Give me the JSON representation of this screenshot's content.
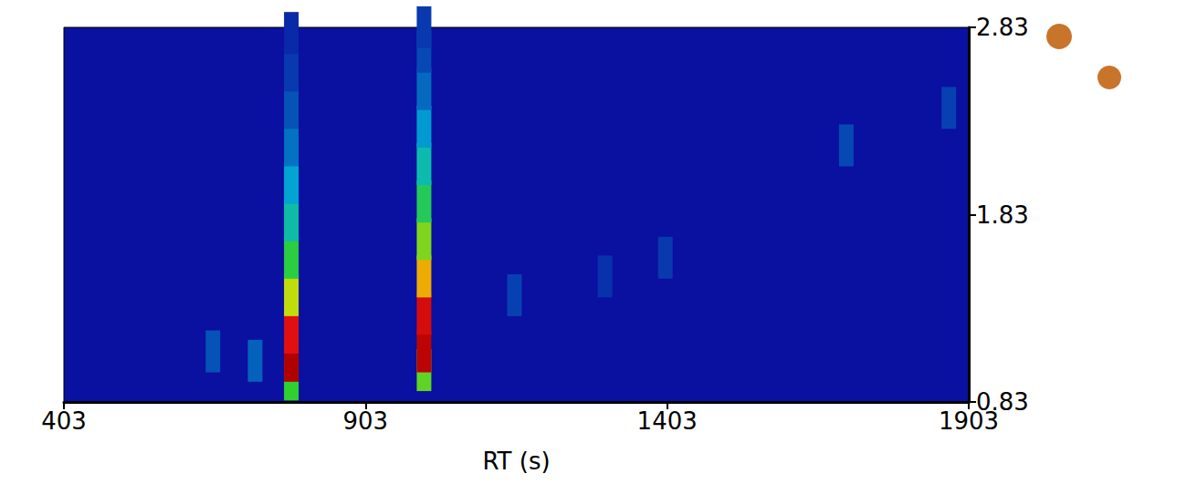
{
  "chart_data": {
    "type": "scatter",
    "x_label": "RT (s)",
    "xlim": [
      403,
      1903
    ],
    "xticks": [
      403,
      903,
      1403,
      1903
    ],
    "ylim": [
      0.83,
      2.83
    ],
    "yticks": [
      0.83,
      1.83,
      2.83
    ],
    "zlim": [
      0,
      100
    ],
    "grid": false,
    "points": [
      [
        780,
        0.95,
        40
      ],
      [
        780,
        1.05,
        100
      ],
      [
        780,
        1.2,
        80
      ],
      [
        780,
        1.4,
        55
      ],
      [
        780,
        1.6,
        38
      ],
      [
        780,
        1.8,
        26
      ],
      [
        780,
        2.0,
        18
      ],
      [
        780,
        2.2,
        12
      ],
      [
        780,
        2.4,
        8
      ],
      [
        780,
        2.6,
        5
      ],
      [
        780,
        2.8,
        3
      ],
      [
        1000,
        1.0,
        45
      ],
      [
        1000,
        1.1,
        95
      ],
      [
        1000,
        1.3,
        85
      ],
      [
        1000,
        1.5,
        65
      ],
      [
        1000,
        1.7,
        48
      ],
      [
        1000,
        1.9,
        35
      ],
      [
        1000,
        2.1,
        25
      ],
      [
        1000,
        2.3,
        17
      ],
      [
        1000,
        2.5,
        11
      ],
      [
        1000,
        2.7,
        7
      ],
      [
        1000,
        2.83,
        5
      ],
      [
        650,
        1.1,
        8
      ],
      [
        720,
        1.05,
        10
      ],
      [
        1150,
        1.4,
        6
      ],
      [
        1300,
        1.5,
        4
      ],
      [
        1400,
        1.6,
        5
      ],
      [
        1700,
        2.2,
        7
      ],
      [
        1870,
        2.4,
        6
      ]
    ]
  }
}
